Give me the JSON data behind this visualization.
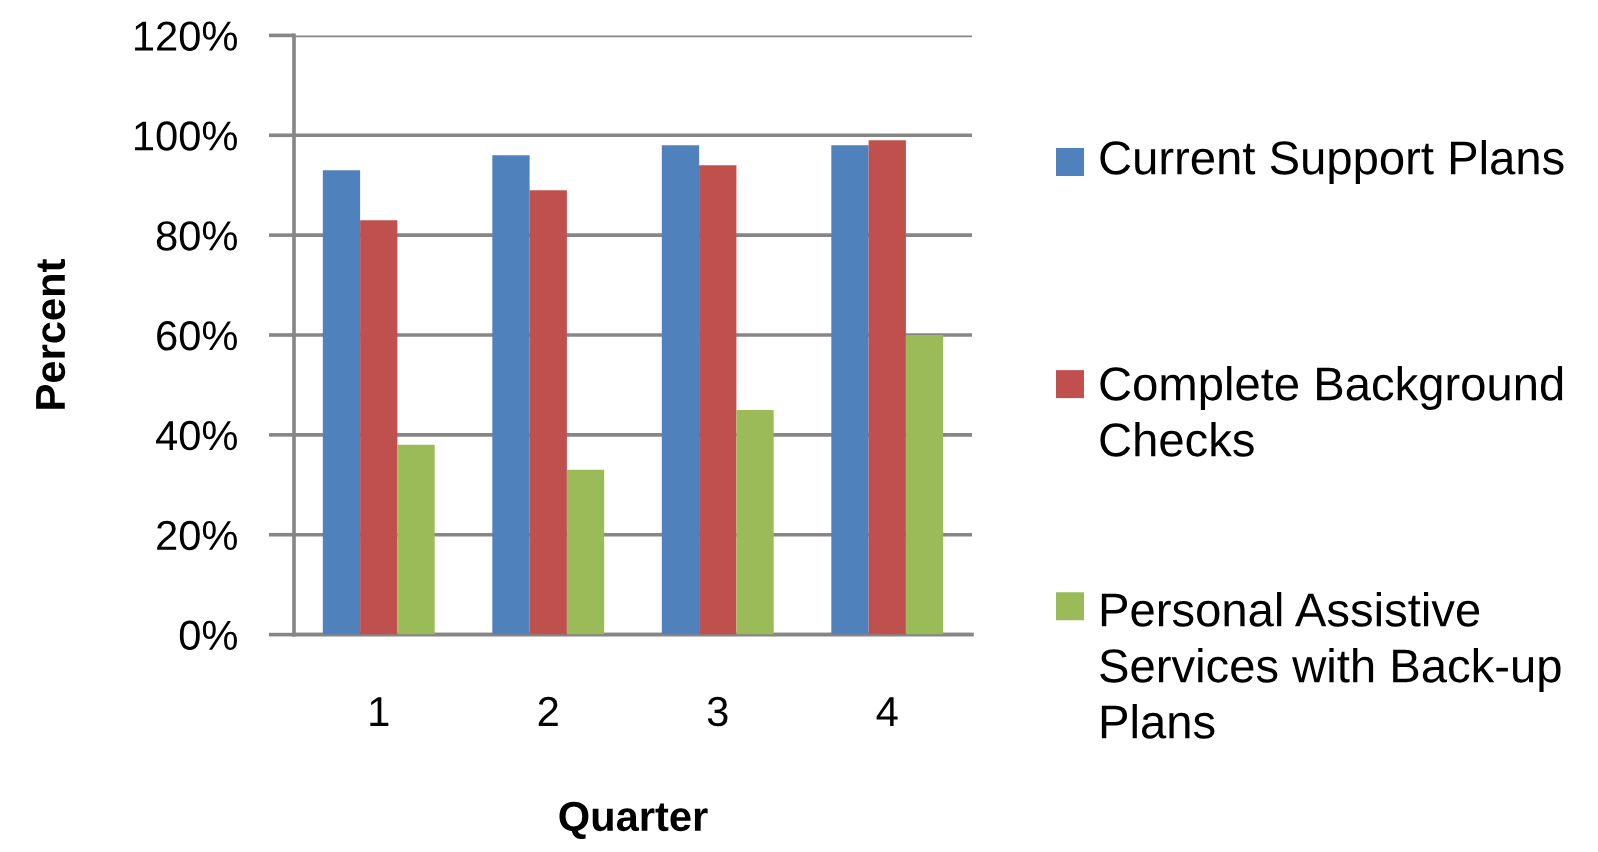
{
  "chart_data": {
    "type": "bar",
    "xlabel": "Quarter",
    "ylabel": "Percent",
    "categories": [
      "1",
      "2",
      "3",
      "4"
    ],
    "series": [
      {
        "name": "Current Support Plans",
        "color": "#4f81bd",
        "values": [
          93,
          96,
          98,
          98
        ]
      },
      {
        "name": "Complete Background Checks",
        "color": "#c0504d",
        "values": [
          83,
          89,
          94,
          99
        ]
      },
      {
        "name": "Personal Assistive Services with Back-up Plans",
        "color": "#9bbb59",
        "values": [
          38,
          33,
          45,
          60
        ]
      }
    ],
    "ylim": [
      0,
      120
    ],
    "yticks": [
      {
        "value": 0,
        "label": "0%"
      },
      {
        "value": 20,
        "label": "20%"
      },
      {
        "value": 40,
        "label": "40%"
      },
      {
        "value": 60,
        "label": "60%"
      },
      {
        "value": 80,
        "label": "80%"
      },
      {
        "value": 100,
        "label": "100%"
      },
      {
        "value": 120,
        "label": "120%"
      }
    ],
    "grid": "y",
    "legend": "right"
  }
}
